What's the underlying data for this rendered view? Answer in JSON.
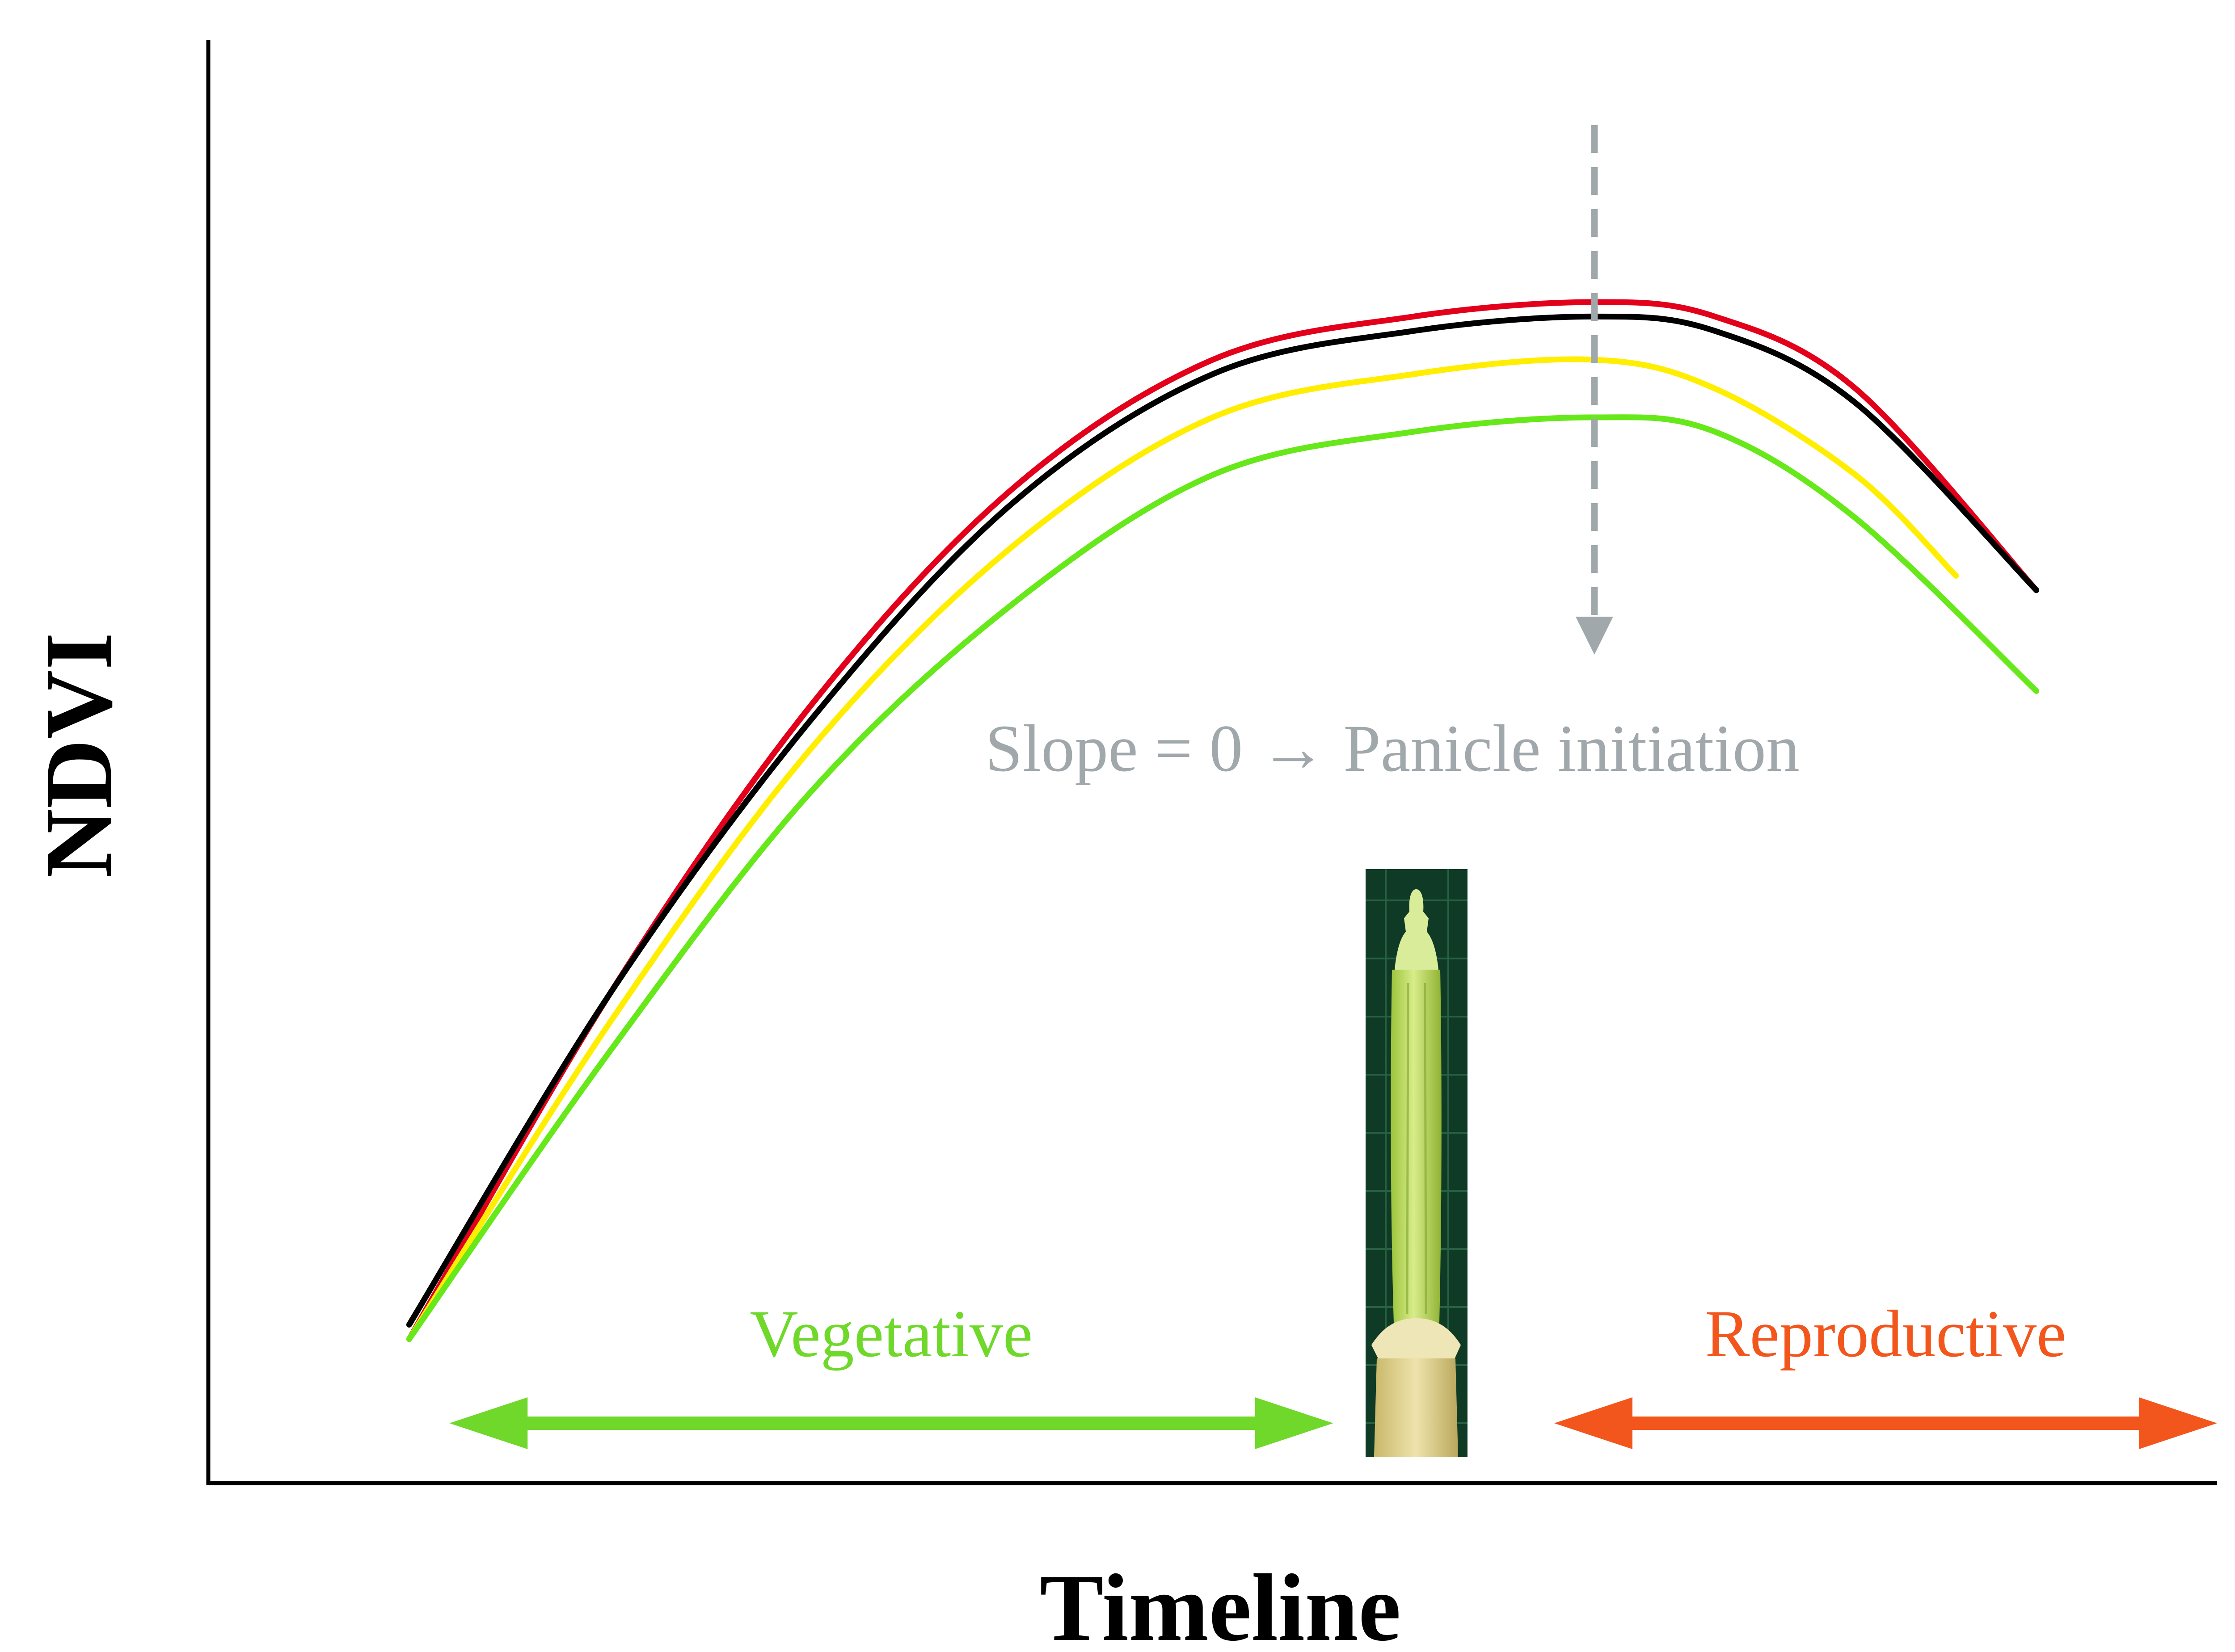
{
  "chart_data": {
    "type": "line",
    "title": "",
    "xlabel": "Timeline",
    "ylabel": "NDVI",
    "grid": false,
    "legend": "none",
    "x_range": [
      0,
      100
    ],
    "y_range": [
      0,
      1
    ],
    "series": [
      {
        "color": "#e3001b",
        "x": [
          10,
          20,
          30,
          40,
          50,
          60,
          69,
          75,
          82,
          91
        ],
        "y": [
          0.1,
          0.34,
          0.54,
          0.69,
          0.78,
          0.81,
          0.82,
          0.81,
          0.76,
          0.62
        ]
      },
      {
        "color": "#000000",
        "x": [
          10,
          20,
          30,
          40,
          50,
          60,
          69,
          75,
          82,
          91
        ],
        "y": [
          0.11,
          0.34,
          0.53,
          0.68,
          0.77,
          0.8,
          0.81,
          0.8,
          0.75,
          0.62
        ]
      },
      {
        "color": "#ffee00",
        "x": [
          10,
          20,
          30,
          40,
          50,
          60,
          69,
          75,
          82,
          87
        ],
        "y": [
          0.1,
          0.32,
          0.51,
          0.65,
          0.74,
          0.77,
          0.78,
          0.76,
          0.7,
          0.63
        ]
      },
      {
        "color": "#66e81a",
        "x": [
          10,
          20,
          30,
          40,
          50,
          60,
          69,
          75,
          82,
          91
        ],
        "y": [
          0.1,
          0.3,
          0.48,
          0.61,
          0.7,
          0.73,
          0.74,
          0.73,
          0.67,
          0.55
        ]
      }
    ],
    "annotations": {
      "slope": {
        "text": "Slope = 0 → Panicle initiation",
        "color": "#a1a8ab",
        "x": 69
      },
      "vegetative": {
        "text": "Vegetative",
        "color": "#6fd82a",
        "arrow_x": [
          12,
          56
        ]
      },
      "reproductive": {
        "text": "Reproductive",
        "color": "#f2561c",
        "arrow_x": [
          67,
          100
        ]
      }
    },
    "inset_image": {
      "icon": "rice-panicle-photo",
      "x": 69
    }
  }
}
